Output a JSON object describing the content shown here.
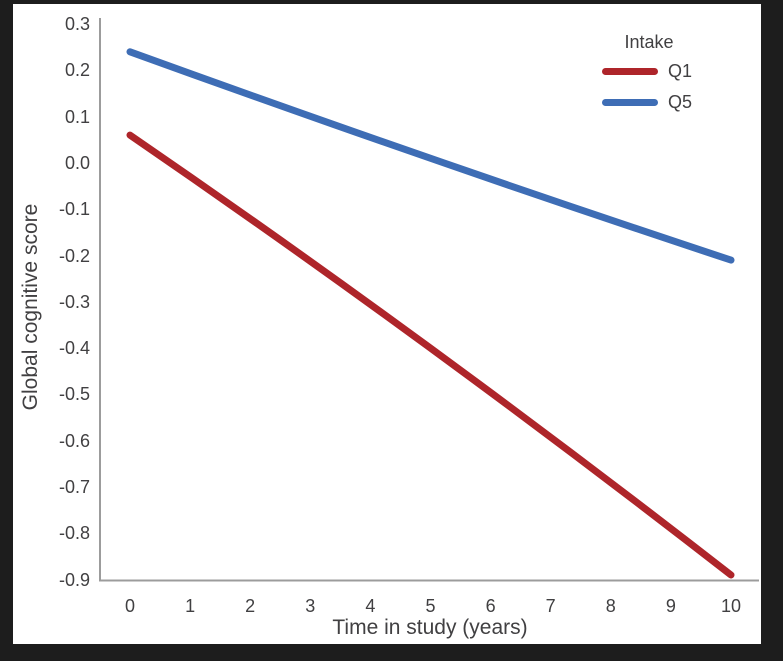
{
  "colors": {
    "frame_background": "#1d1d1d",
    "canvas_background": "#ffffff",
    "axis": "#9c9c9c",
    "text": "#414042",
    "q1_red": "#ae252a",
    "q5_blue": "#3e6db5"
  },
  "chart_data": {
    "type": "line",
    "title": "",
    "xlabel": "Time in study (years)",
    "ylabel": "Global cognitive score",
    "xlim": [
      0,
      10
    ],
    "ylim": [
      -0.9,
      0.3
    ],
    "grid": false,
    "legend": {
      "title": "Intake",
      "position": "top-right"
    },
    "x_ticks": [
      {
        "label": "0",
        "value": 0
      },
      {
        "label": "1",
        "value": 1
      },
      {
        "label": "2",
        "value": 2
      },
      {
        "label": "3",
        "value": 3
      },
      {
        "label": "4",
        "value": 4
      },
      {
        "label": "5",
        "value": 5
      },
      {
        "label": "6",
        "value": 6
      },
      {
        "label": "7",
        "value": 7
      },
      {
        "label": "8",
        "value": 8
      },
      {
        "label": "9",
        "value": 9
      },
      {
        "label": "10",
        "value": 10
      }
    ],
    "y_ticks": [
      {
        "label": "0.3",
        "value": 0.3
      },
      {
        "label": "0.2",
        "value": 0.2
      },
      {
        "label": "0.1",
        "value": 0.1
      },
      {
        "label": "0.0",
        "value": 0.0
      },
      {
        "label": "-0.1",
        "value": -0.1
      },
      {
        "label": "-0.2",
        "value": -0.2
      },
      {
        "label": "-0.3",
        "value": -0.3
      },
      {
        "label": "-0.4",
        "value": -0.4
      },
      {
        "label": "-0.5",
        "value": -0.5
      },
      {
        "label": "-0.6",
        "value": -0.6
      },
      {
        "label": "-0.7",
        "value": -0.7
      },
      {
        "label": "-0.8",
        "value": -0.8
      },
      {
        "label": "-0.9",
        "value": -0.9
      }
    ],
    "series": [
      {
        "name": "Q1",
        "color": "#ae252a",
        "x": [
          0,
          5,
          10
        ],
        "y": [
          0.06,
          -0.4,
          -0.89
        ]
      },
      {
        "name": "Q5",
        "color": "#3e6db5",
        "x": [
          0,
          5,
          10
        ],
        "y": [
          0.24,
          0.01,
          -0.21
        ]
      }
    ]
  }
}
